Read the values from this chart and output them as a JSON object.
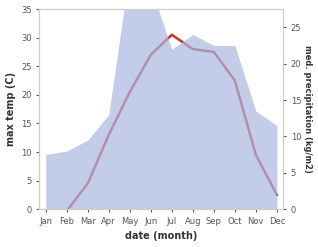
{
  "months": [
    "Jan",
    "Feb",
    "Mar",
    "Apr",
    "May",
    "Jun",
    "Jul",
    "Aug",
    "Sep",
    "Oct",
    "Nov",
    "Dec"
  ],
  "month_positions": [
    0,
    1,
    2,
    3,
    4,
    5,
    6,
    7,
    8,
    9,
    10,
    11
  ],
  "temperature": [
    -0.3,
    -0.3,
    4.5,
    13.0,
    20.5,
    27.0,
    30.5,
    28.0,
    27.5,
    22.5,
    9.5,
    2.5
  ],
  "precipitation": [
    7.5,
    8.0,
    9.5,
    13.0,
    33.0,
    30.5,
    22.0,
    24.0,
    22.5,
    22.5,
    13.5,
    11.5
  ],
  "temp_color": "#c0392b",
  "precip_fill_color": "#aab8e0",
  "ylabel_left": "max temp (C)",
  "ylabel_right": "med. precipitation (kg/m2)",
  "xlabel": "date (month)",
  "ylim_left": [
    0,
    35
  ],
  "ylim_right": [
    0,
    27.5
  ],
  "yticks_left": [
    0,
    5,
    10,
    15,
    20,
    25,
    30,
    35
  ],
  "yticks_right": [
    0,
    5,
    10,
    15,
    20,
    25
  ],
  "background_color": "#ffffff",
  "spine_color": "#cccccc",
  "tick_color": "#555555",
  "label_color": "#333333"
}
